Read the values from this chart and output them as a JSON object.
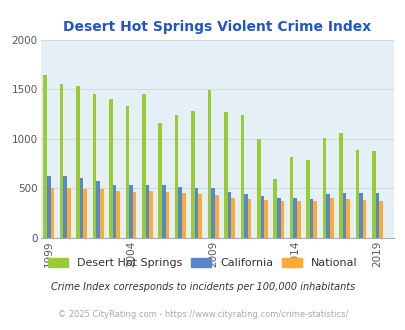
{
  "title": "Desert Hot Springs Violent Crime Index",
  "title_color": "#2255cc",
  "years": [
    1999,
    2000,
    2001,
    2002,
    2003,
    2004,
    2005,
    2006,
    2007,
    2008,
    2009,
    2010,
    2011,
    2012,
    2013,
    2014,
    2015,
    2016,
    2017,
    2018,
    2019
  ],
  "dhs": [
    1640,
    1555,
    1530,
    1450,
    1400,
    1330,
    1450,
    1160,
    1240,
    1275,
    1490,
    1270,
    1240,
    1000,
    590,
    810,
    780,
    1010,
    1060,
    880,
    870
  ],
  "ca": [
    620,
    620,
    600,
    575,
    530,
    530,
    530,
    530,
    510,
    500,
    500,
    460,
    440,
    420,
    400,
    400,
    390,
    440,
    450,
    450,
    455
  ],
  "nat": [
    505,
    500,
    495,
    495,
    470,
    465,
    470,
    465,
    450,
    440,
    430,
    400,
    385,
    380,
    370,
    370,
    370,
    395,
    385,
    375,
    365
  ],
  "dhs_color": "#99cc33",
  "ca_color": "#5588cc",
  "nat_color": "#ffaa33",
  "bg_color": "#e4f0f5",
  "ylim": [
    0,
    2000
  ],
  "yticks": [
    0,
    500,
    1000,
    1500,
    2000
  ],
  "xtick_labels": [
    1999,
    2004,
    2009,
    2014,
    2019
  ],
  "legend_labels": [
    "Desert Hot Springs",
    "California",
    "National"
  ],
  "footnote1": "Crime Index corresponds to incidents per 100,000 inhabitants",
  "footnote2": "© 2025 CityRating.com - https://www.cityrating.com/crime-statistics/",
  "footnote1_color": "#333344",
  "footnote2_color": "#aaaaaa",
  "grid_color": "#ccdddd"
}
